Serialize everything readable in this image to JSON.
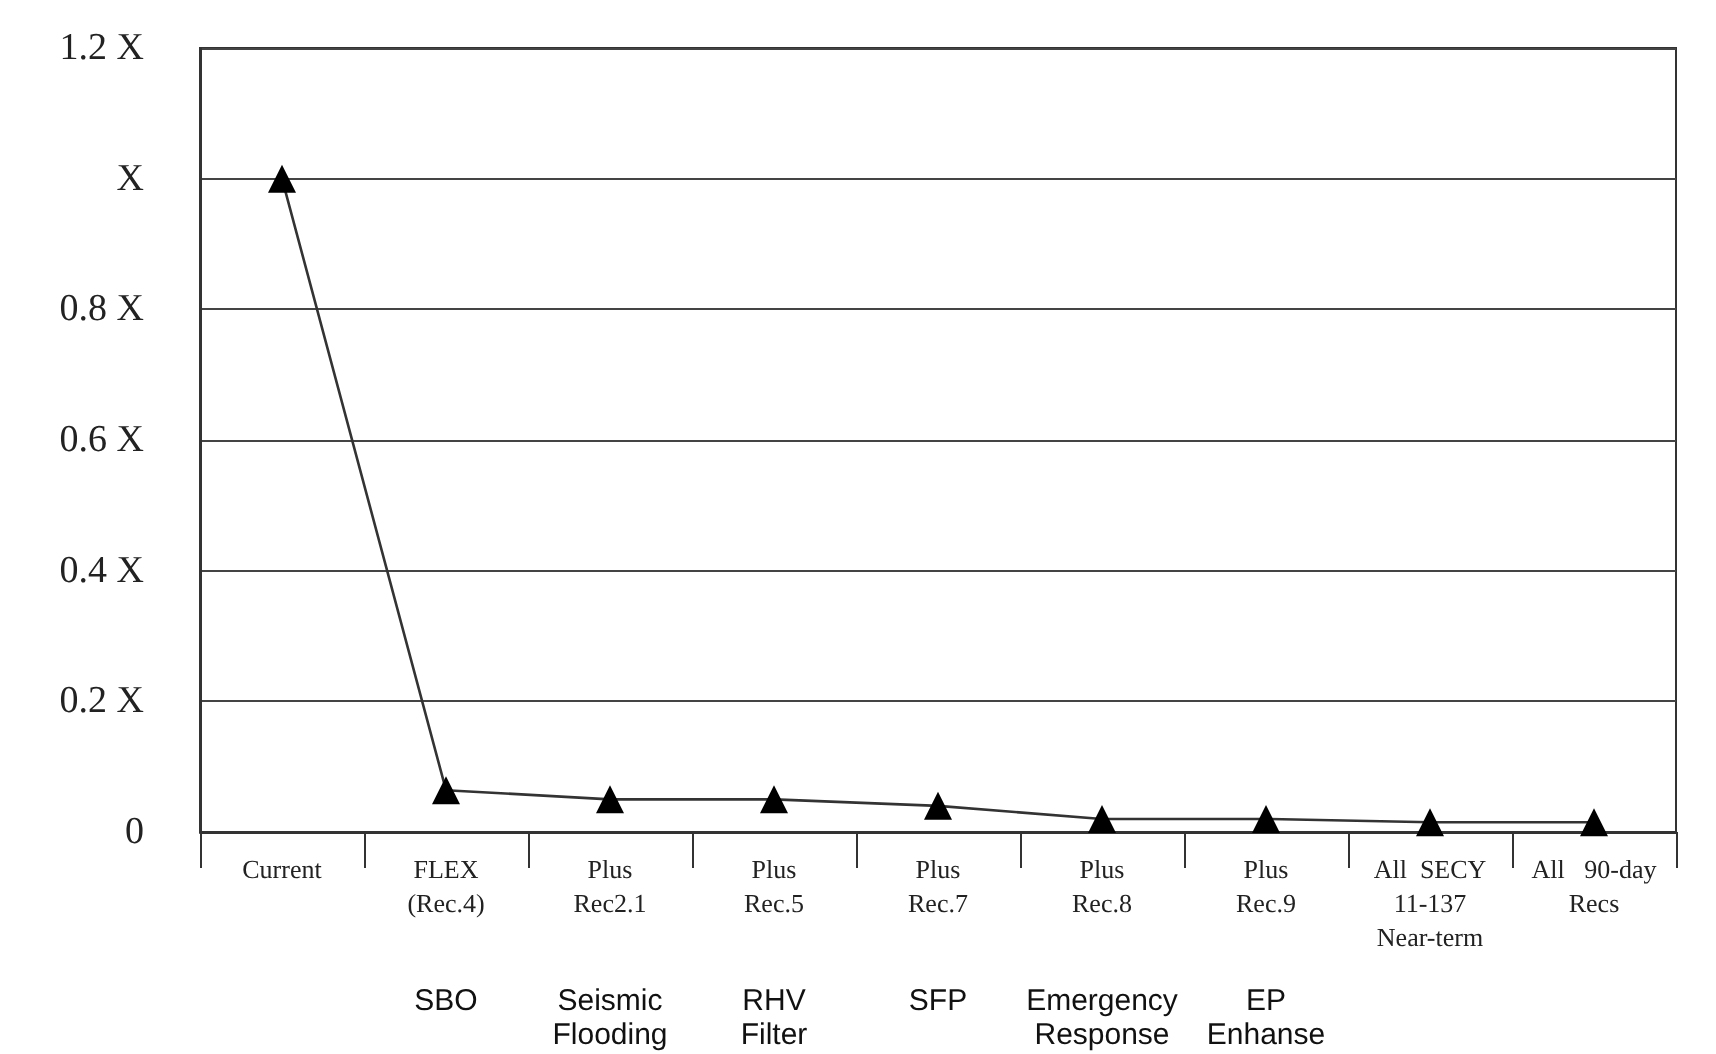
{
  "chart_data": {
    "type": "line",
    "categories": [
      "Current",
      "FLEX\n(Rec.4)",
      "Plus\nRec2.1",
      "Plus\nRec.5",
      "Plus\nRec.7",
      "Plus\nRec.8",
      "Plus\nRec.9",
      "All  SECY\n11-137\nNear-term",
      "All   90-day\nRecs"
    ],
    "series": [
      {
        "color": "#000000",
        "values": [
          1.0,
          0.064,
          0.05,
          0.05,
          0.04,
          0.02,
          0.02,
          0.015,
          0.015
        ]
      }
    ],
    "ylim": [
      0,
      1.2
    ],
    "yticks": [
      {
        "value": 0,
        "label": "0"
      },
      {
        "value": 0.2,
        "label": "0.2 X"
      },
      {
        "value": 0.4,
        "label": "0.4 X"
      },
      {
        "value": 0.6,
        "label": "0.6 X"
      },
      {
        "value": 0.8,
        "label": "0.8 X"
      },
      {
        "value": 1,
        "label": "X"
      },
      {
        "value": 1.2,
        "label": "1.2 X"
      }
    ],
    "annotations": [
      "SBO",
      "Seismic\nFlooding",
      "RHV\nFilter",
      "SFP",
      "Emergency\nResponse",
      "EP\nEnhanse"
    ],
    "grid": "y",
    "marker": "triangle",
    "line_style": "solid"
  }
}
